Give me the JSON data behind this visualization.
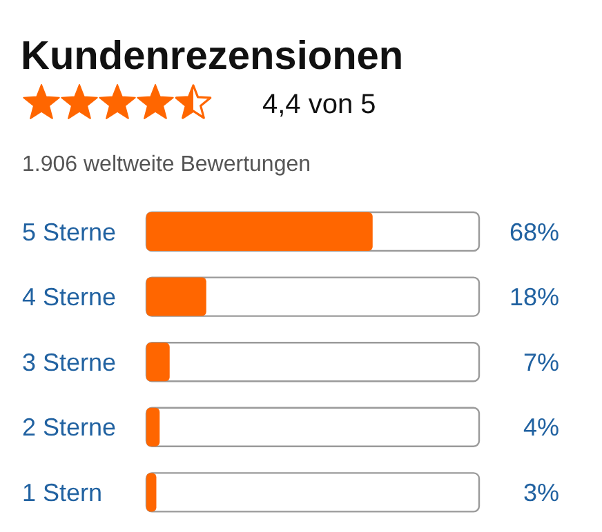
{
  "chart_data": {
    "type": "bar",
    "orientation": "horizontal",
    "title": "Kundenrezensionen",
    "subtitle": "4,4 von 5",
    "annotations": [
      "1.906 weltweite Bewertungen"
    ],
    "categories": [
      "5 Sterne",
      "4 Sterne",
      "3 Sterne",
      "2 Sterne",
      "1 Stern"
    ],
    "values": [
      68,
      18,
      7,
      4,
      3
    ],
    "value_labels": [
      "68%",
      "18%",
      "7%",
      "4%",
      "3%"
    ],
    "color": "#ff6600",
    "xlim": [
      0,
      100
    ]
  }
}
